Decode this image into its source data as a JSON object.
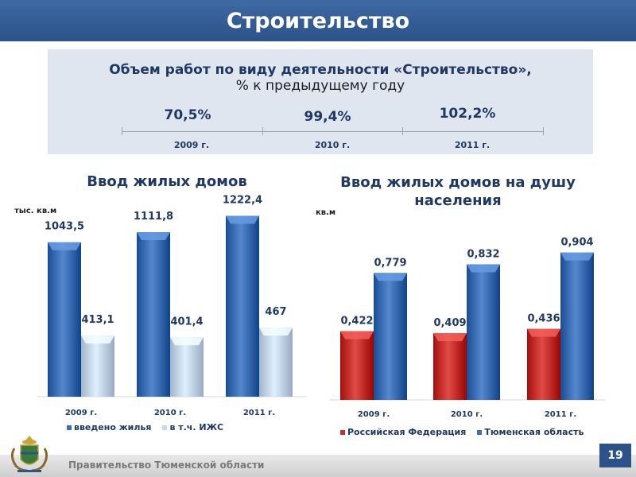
{
  "header": {
    "title": "Строительство"
  },
  "stats": {
    "title": "Объем работ по виду деятельности «Строительство»,",
    "subtitle": "% к предыдущему году",
    "values": [
      "70,5%",
      "99,4%",
      "102,2%"
    ],
    "years": [
      "2009 г.",
      "2010 г.",
      "2011 г."
    ]
  },
  "chart_data": [
    {
      "type": "bar",
      "title": "Ввод жилых домов",
      "unit": "тыс. кв.м",
      "categories": [
        "2009 г.",
        "2010 г.",
        "2011 г."
      ],
      "series": [
        {
          "name": "введено жилья",
          "values": [
            1043.5,
            1111.8,
            1222.4
          ],
          "labels": [
            "1043,5",
            "1111,8",
            "1222,4"
          ],
          "color": "#3c6fb5"
        },
        {
          "name": "в т.ч. ИЖС",
          "values": [
            413.1,
            401.4,
            467
          ],
          "labels": [
            "413,1",
            "401,4",
            "467"
          ],
          "color": "#c6d7ee"
        }
      ],
      "ylim": [
        0,
        1300
      ],
      "grid": false,
      "legend": "bottom"
    },
    {
      "type": "bar",
      "title": "Ввод жилых домов на душу населения",
      "unit": "кв.м",
      "categories": [
        "2009 г.",
        "2010 г.",
        "2011 г."
      ],
      "series": [
        {
          "name": "Российская Федерация",
          "values": [
            0.422,
            0.409,
            0.436
          ],
          "labels": [
            "0,422",
            "0,409",
            "0,436"
          ],
          "color": "#c8322e"
        },
        {
          "name": "Тюменская область",
          "values": [
            0.779,
            0.832,
            0.904
          ],
          "labels": [
            "0,779",
            "0,832",
            "0,904"
          ],
          "color": "#3c6fb5"
        }
      ],
      "ylim": [
        0,
        1.0
      ],
      "grid": false,
      "legend": "bottom"
    }
  ],
  "footer": {
    "text": "Правительство Тюменской области",
    "page": "19"
  },
  "colors": {
    "header": "#2c5289",
    "panel": "#dfe6ef",
    "accent": "#1f3864"
  }
}
